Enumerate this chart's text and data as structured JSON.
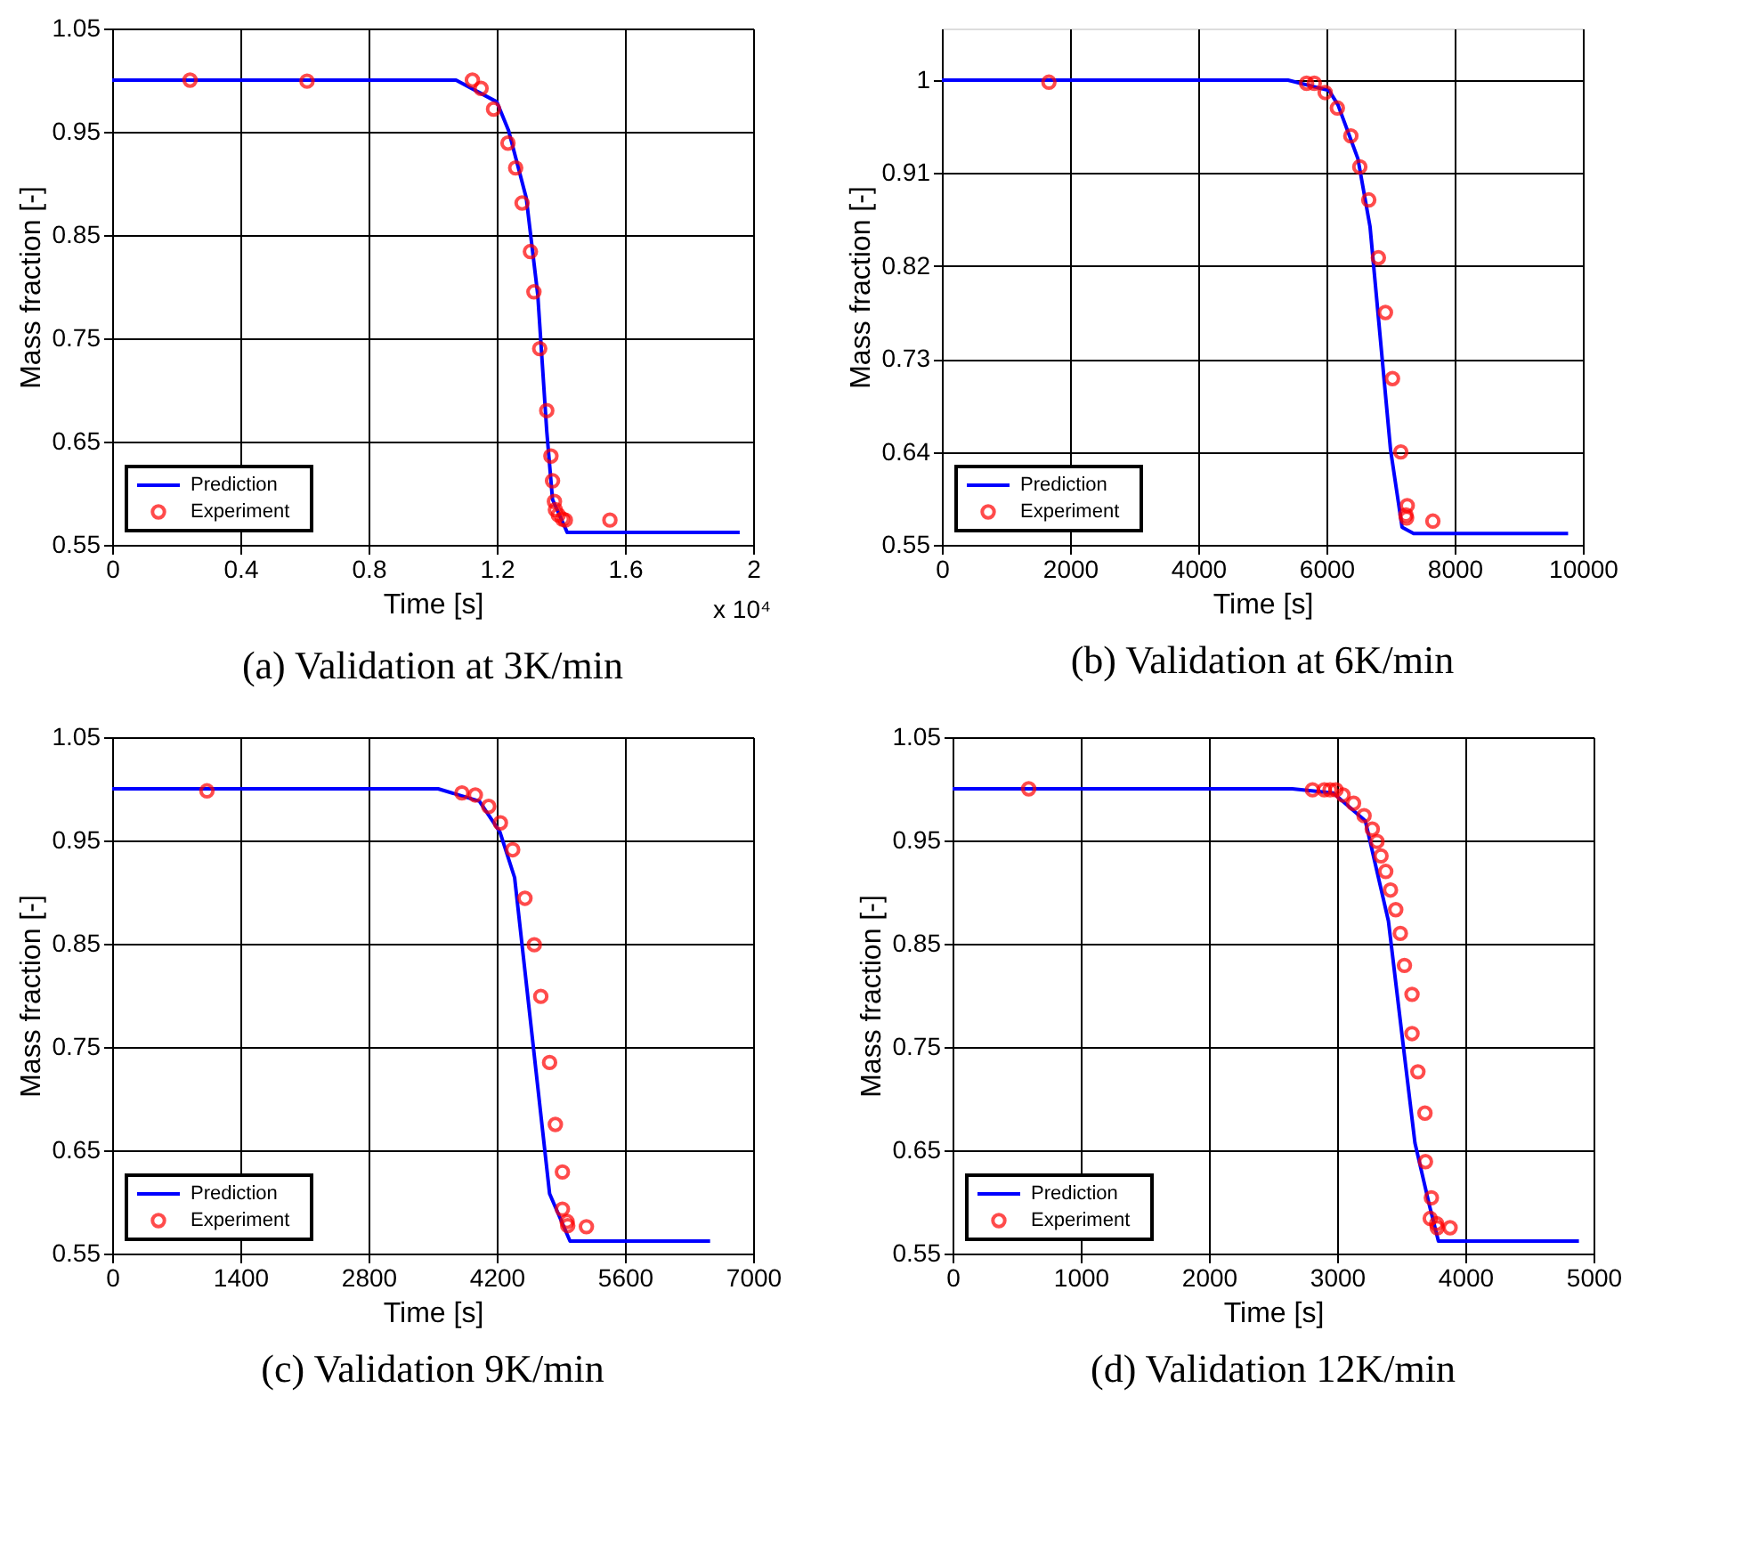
{
  "chart_data": [
    {
      "type": "line",
      "title": "(a) Validation at 3K/min",
      "xlabel": "Time [s]",
      "ylabel": "Mass fraction [-]",
      "xlim": [
        0,
        2
      ],
      "xticks": [
        0,
        0.4,
        0.8,
        1.2,
        1.6,
        2
      ],
      "ylim": [
        0.55,
        1.05
      ],
      "yticks": [
        0.55,
        0.65,
        0.75,
        0.85,
        0.95,
        1.05
      ],
      "grid": true,
      "legend": "bottom left",
      "annotations": [
        "x 10⁴"
      ],
      "series": [
        {
          "name": "Prediction",
          "color": "#0000ff",
          "x": [
            0,
            1.073,
            1.2,
            1.237,
            1.292,
            1.328,
            1.356,
            1.374,
            1.42,
            1.958
          ],
          "values": [
            1.0,
            1.0,
            0.979,
            0.951,
            0.886,
            0.792,
            0.66,
            0.594,
            0.562,
            0.562
          ]
        },
        {
          "name": "Experiment",
          "color": "#ff0000",
          "type": "scatter",
          "marker": "circle",
          "x": [
            0.243,
            0.608,
            1.124,
            1.151,
            1.19,
            1.235,
            1.259,
            1.279,
            1.305,
            1.316,
            1.334,
            1.356,
            1.369,
            1.374,
            1.38,
            1.383,
            1.392,
            1.405,
            1.414,
            1.553
          ],
          "values": [
            1.0,
            0.999,
            1.0,
            0.992,
            0.972,
            0.939,
            0.915,
            0.881,
            0.834,
            0.795,
            0.74,
            0.68,
            0.636,
            0.612,
            0.592,
            0.584,
            0.579,
            0.575,
            0.574,
            0.574
          ]
        }
      ]
    },
    {
      "type": "line",
      "title": "(b) Validation at 6K/min",
      "xlabel": "Time [s]",
      "ylabel": "Mass fraction [-]",
      "xlim": [
        0,
        10000
      ],
      "xticks": [
        0,
        2000,
        4000,
        6000,
        8000,
        10000
      ],
      "ylim": [
        0.55,
        1.05
      ],
      "yticks": [
        0.55,
        0.64,
        0.73,
        0.82,
        0.91,
        1
      ],
      "grid": true,
      "legend": "bottom left",
      "series": [
        {
          "name": "Prediction",
          "color": "#0000ff",
          "x": [
            0,
            5400,
            6040,
            6180,
            6490,
            6680,
            7000,
            7180,
            7360,
            9770
          ],
          "values": [
            1.0,
            1.0,
            0.99,
            0.976,
            0.924,
            0.858,
            0.642,
            0.567,
            0.561,
            0.561
          ]
        },
        {
          "name": "Experiment",
          "color": "#ff0000",
          "type": "scatter",
          "marker": "circle",
          "x": [
            1670,
            5690,
            5810,
            5980,
            6170,
            6380,
            6520,
            6660,
            6810,
            6920,
            7030,
            7160,
            7260,
            7240,
            7250,
            7660
          ],
          "values": [
            0.998,
            0.997,
            0.997,
            0.988,
            0.973,
            0.946,
            0.916,
            0.884,
            0.828,
            0.775,
            0.711,
            0.64,
            0.588,
            0.579,
            0.576,
            0.573
          ]
        }
      ]
    },
    {
      "type": "line",
      "title": "(c) Validation 9K/min",
      "xlabel": "Time [s]",
      "ylabel": "Mass fraction [-]",
      "xlim": [
        0,
        7000
      ],
      "xticks": [
        0,
        1400,
        2800,
        4200,
        5600,
        7000
      ],
      "ylim": [
        0.55,
        1.05
      ],
      "yticks": [
        0.55,
        0.65,
        0.75,
        0.85,
        0.95,
        1.05
      ],
      "grid": true,
      "legend": "bottom left",
      "series": [
        {
          "name": "Prediction",
          "color": "#0000ff",
          "x": [
            0,
            3560,
            4010,
            4235,
            4395,
            4777,
            5000,
            6530
          ],
          "values": [
            1.0,
            1.0,
            0.988,
            0.958,
            0.914,
            0.608,
            0.562,
            0.562
          ]
        },
        {
          "name": "Experiment",
          "color": "#ff0000",
          "type": "scatter",
          "marker": "circle",
          "x": [
            1035,
            3820,
            3966,
            4112,
            4240,
            4374,
            4508,
            4610,
            4681,
            4777,
            4840,
            4917,
            4917,
            4968,
            4975,
            5179
          ],
          "values": [
            0.998,
            0.996,
            0.994,
            0.983,
            0.967,
            0.941,
            0.894,
            0.849,
            0.799,
            0.735,
            0.675,
            0.629,
            0.593,
            0.581,
            0.577,
            0.576
          ]
        }
      ]
    },
    {
      "type": "line",
      "title": "(d) Validation 12K/min",
      "xlabel": "Time [s]",
      "ylabel": "Mass fraction [-]",
      "xlim": [
        0,
        5000
      ],
      "xticks": [
        0,
        1000,
        2000,
        3000,
        4000,
        5000
      ],
      "ylim": [
        0.55,
        1.05
      ],
      "yticks": [
        0.55,
        0.65,
        0.75,
        0.85,
        0.95,
        1.05
      ],
      "grid": true,
      "legend": "bottom left",
      "series": [
        {
          "name": "Prediction",
          "color": "#0000ff",
          "x": [
            0,
            2650,
            2970,
            3220,
            3400,
            3516,
            3607,
            3721,
            3790,
            4886
          ],
          "values": [
            1.0,
            1.0,
            0.996,
            0.969,
            0.872,
            0.751,
            0.657,
            0.596,
            0.562,
            0.562
          ]
        },
        {
          "name": "Experiment",
          "color": "#ff0000",
          "type": "scatter",
          "marker": "circle",
          "x": [
            594,
            2808,
            2900,
            2945,
            2991,
            3046,
            3128,
            3210,
            3274,
            3311,
            3342,
            3379,
            3416,
            3457,
            3493,
            3525,
            3584,
            3584,
            3630,
            3685,
            3689,
            3735,
            3726,
            3776,
            3781,
            3881
          ],
          "values": [
            1.0,
            0.999,
            0.999,
            0.999,
            0.999,
            0.994,
            0.986,
            0.974,
            0.961,
            0.949,
            0.935,
            0.92,
            0.902,
            0.883,
            0.86,
            0.829,
            0.801,
            0.763,
            0.726,
            0.686,
            0.639,
            0.604,
            0.584,
            0.579,
            0.575,
            0.575
          ]
        }
      ]
    }
  ]
}
